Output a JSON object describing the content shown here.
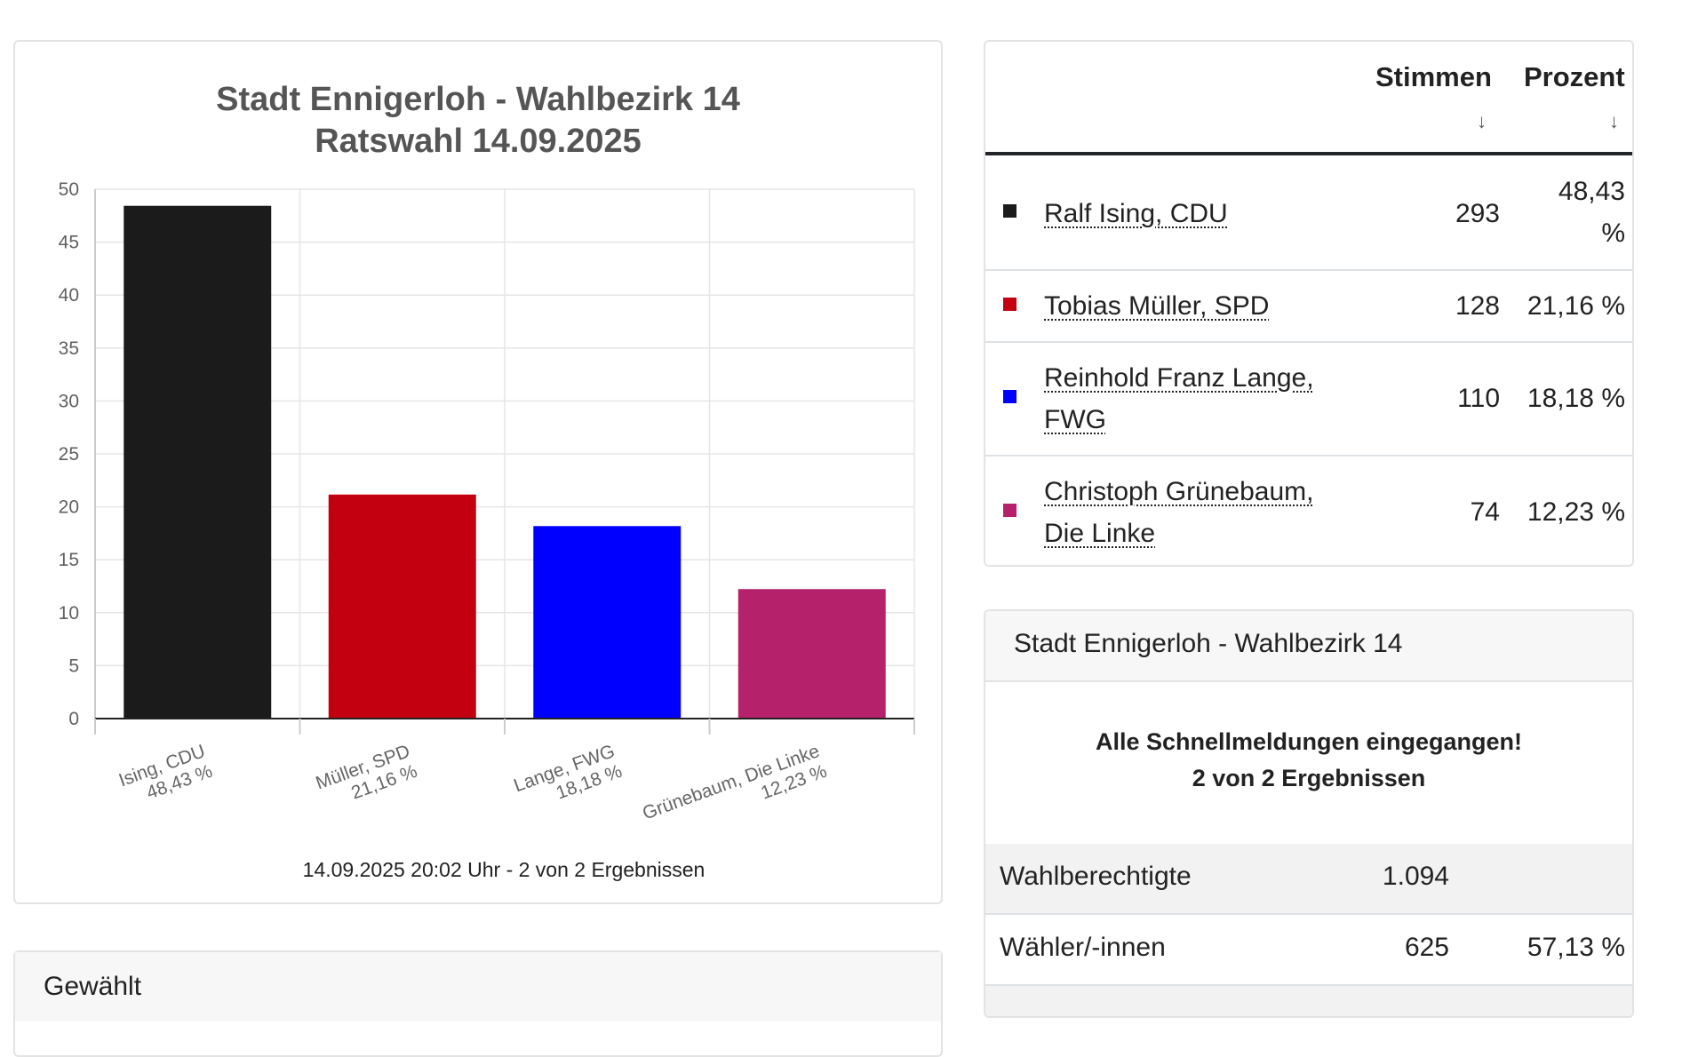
{
  "chart_data": {
    "type": "bar",
    "title": "Stadt Ennigerloh - Wahlbezirk 14",
    "subtitle": "Ratswahl 14.09.2025",
    "categories": [
      "Ising, CDU",
      "Müller, SPD",
      "Lange, FWG",
      "Grünebaum, Die Linke"
    ],
    "category_values_text": [
      "48,43 %",
      "21,16 %",
      "18,18 %",
      "12,23 %"
    ],
    "values": [
      48.43,
      21.16,
      18.18,
      12.23
    ],
    "colors": [
      "#1b1b1b",
      "#c20010",
      "#0000ff",
      "#b5226b"
    ],
    "ylim": [
      0,
      50
    ],
    "yticks": [
      0,
      5,
      10,
      15,
      20,
      25,
      30,
      35,
      40,
      45,
      50
    ],
    "grid": true,
    "xlabel": "",
    "ylabel": "",
    "caption": "14.09.2025 20:02 Uhr - 2 von 2 Ergebnissen"
  },
  "results_table": {
    "col_votes": "Stimmen",
    "col_percent": "Prozent",
    "sort_icon": "↓",
    "rows": [
      {
        "name_line1": "Ralf Ising, CDU",
        "name_line2": "",
        "votes": "293",
        "pct_line1": "48,43",
        "pct_line2": "%",
        "color": "#1b1b1b"
      },
      {
        "name_line1": "Tobias Müller, SPD",
        "name_line2": "",
        "votes": "128",
        "pct_line1": "21,16 %",
        "pct_line2": "",
        "color": "#c20010"
      },
      {
        "name_line1": "Reinhold Franz Lange,",
        "name_line2": "FWG",
        "votes": "110",
        "pct_line1": "18,18 %",
        "pct_line2": "",
        "color": "#0000ff"
      },
      {
        "name_line1": "Christoph Grünebaum,",
        "name_line2": "Die Linke",
        "votes": "74",
        "pct_line1": "12,23 %",
        "pct_line2": "",
        "color": "#b5226b"
      }
    ]
  },
  "district_info": {
    "header": "Stadt Ennigerloh - Wahlbezirk 14",
    "message_line1": "Alle Schnellmeldungen eingegangen!",
    "message_line2": "2 von 2 Ergebnissen",
    "stats": [
      {
        "label": "Wahlberechtigte",
        "value": "1.094",
        "percent": ""
      },
      {
        "label": "Wähler/-innen",
        "value": "625",
        "percent": "57,13 %"
      }
    ]
  },
  "elected": {
    "header": "Gewählt"
  }
}
